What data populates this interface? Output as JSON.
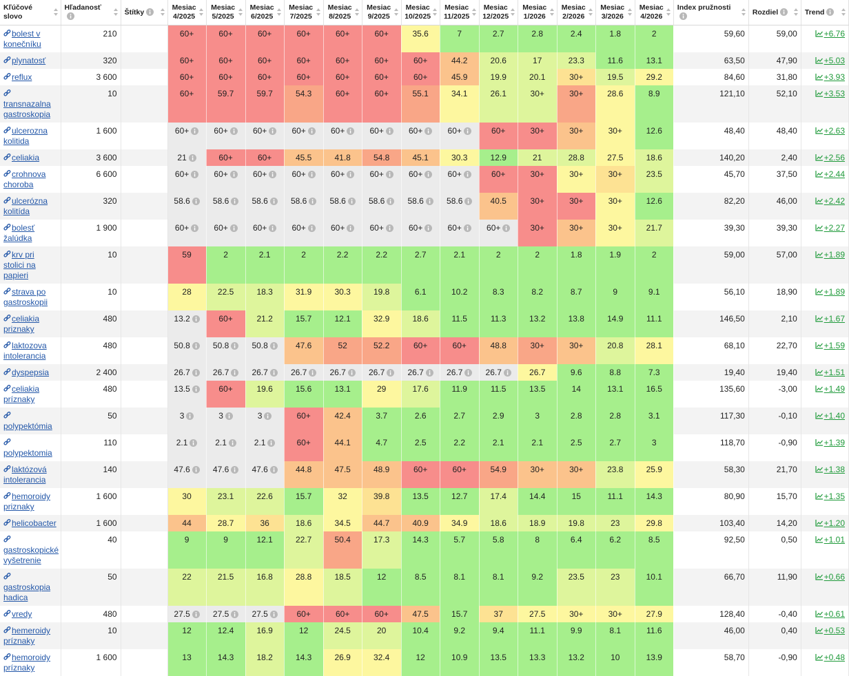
{
  "table": {
    "headers": [
      "Kľúčové slovo",
      "Hľadanosť",
      "Štítky",
      "Mesiac 4/2025",
      "Mesiac 5/2025",
      "Mesiac 6/2025",
      "Mesiac 7/2025",
      "Mesiac 8/2025",
      "Mesiac 9/2025",
      "Mesiac 10/2025",
      "Mesiac 11/2025",
      "Mesiac 12/2025",
      "Mesiac 1/2026",
      "Mesiac 2/2026",
      "Mesiac 3/2026",
      "Mesiac 4/2026",
      "Index pružnosti",
      "Rozdiel",
      "Trend"
    ],
    "unavailable_color": "#ebebeb",
    "rows": [
      {
        "keyword": "bolest v konečníku",
        "volume": "210",
        "months": [
          "60+",
          "60+",
          "60+",
          "60+",
          "60+",
          "60+",
          "35.6",
          "7",
          "2.7",
          "2.8",
          "2.4",
          "1.8",
          "2"
        ],
        "colors": [
          "#f78d8b",
          "#f78d8b",
          "#f78d8b",
          "#f78d8b",
          "#f78d8b",
          "#f78d8b",
          "#fdf79f",
          "#a6ef8c",
          "#a6ef8c",
          "#a6ef8c",
          "#a6ef8c",
          "#a6ef8c",
          "#a6ef8c"
        ],
        "index": "59,60",
        "diff": "59,00",
        "trend": "+6.76"
      },
      {
        "keyword": "plynatosť",
        "volume": "320",
        "months": [
          "60+",
          "60+",
          "60+",
          "60+",
          "60+",
          "60+",
          "60+",
          "44.2",
          "20.6",
          "17",
          "23.3",
          "11.6",
          "13.1"
        ],
        "colors": [
          "#f78d8b",
          "#f78d8b",
          "#f78d8b",
          "#f78d8b",
          "#f78d8b",
          "#f78d8b",
          "#f78d8b",
          "#fbc38c",
          "#def59c",
          "#def59c",
          "#def59c",
          "#a6ef8c",
          "#a6ef8c"
        ],
        "index": "63,50",
        "diff": "47,90",
        "trend": "+5.03"
      },
      {
        "keyword": "reflux",
        "volume": "3 600",
        "months": [
          "60+",
          "60+",
          "60+",
          "60+",
          "60+",
          "60+",
          "60+",
          "45.9",
          "19.9",
          "20.1",
          "30+",
          "19.5",
          "29.2"
        ],
        "colors": [
          "#f78d8b",
          "#f78d8b",
          "#f78d8b",
          "#f78d8b",
          "#f78d8b",
          "#f78d8b",
          "#f78d8b",
          "#fbc38c",
          "#def59c",
          "#def59c",
          "#fde293",
          "#def59c",
          "#fdf79f"
        ],
        "index": "84,60",
        "diff": "31,80",
        "trend": "+3.93"
      },
      {
        "keyword": "transnazalna gastroskopia",
        "volume": "10",
        "months": [
          "60+",
          "59.7",
          "59.7",
          "54.3",
          "60+",
          "60+",
          "55.1",
          "34.1",
          "26.1",
          "30+",
          "30+",
          "28.6",
          "8.9"
        ],
        "colors": [
          "#f78d8b",
          "#f78d8b",
          "#f78d8b",
          "#f9a687",
          "#f78d8b",
          "#f78d8b",
          "#f9a687",
          "#fdf79f",
          "#def59c",
          "#def59c",
          "#f9a687",
          "#fdf79f",
          "#a6ef8c"
        ],
        "index": "121,10",
        "diff": "52,10",
        "trend": "+3.53"
      },
      {
        "keyword": "ulcerozna kolitida",
        "volume": "1 600",
        "months": [
          "60+",
          "60+",
          "60+",
          "60+",
          "60+",
          "60+",
          "60+",
          "60+",
          "60+",
          "30+",
          "30+",
          "30+",
          "12.6"
        ],
        "colors": [
          "#ebebeb",
          "#ebebeb",
          "#ebebeb",
          "#ebebeb",
          "#ebebeb",
          "#ebebeb",
          "#ebebeb",
          "#ebebeb",
          "#f78d8b",
          "#f78d8b",
          "#fbc38c",
          "#fdf79f",
          "#a6ef8c"
        ],
        "index": "48,40",
        "diff": "48,40",
        "trend": "+2.63"
      },
      {
        "keyword": "celiakia",
        "volume": "3 600",
        "months": [
          "21",
          "60+",
          "60+",
          "45.5",
          "41.8",
          "54.8",
          "45.1",
          "30.3",
          "12.9",
          "21",
          "28.8",
          "27.5",
          "18.6"
        ],
        "colors": [
          "#ebebeb",
          "#f78d8b",
          "#f78d8b",
          "#fbc38c",
          "#fbc38c",
          "#f9a687",
          "#fbc38c",
          "#fdf79f",
          "#a6ef8c",
          "#def59c",
          "#def59c",
          "#fdf79f",
          "#def59c"
        ],
        "index": "140,20",
        "diff": "2,40",
        "trend": "+2.56"
      },
      {
        "keyword": "crohnova choroba",
        "volume": "6 600",
        "months": [
          "60+",
          "60+",
          "60+",
          "60+",
          "60+",
          "60+",
          "60+",
          "60+",
          "60+",
          "30+",
          "30+",
          "30+",
          "23.5"
        ],
        "colors": [
          "#ebebeb",
          "#ebebeb",
          "#ebebeb",
          "#ebebeb",
          "#ebebeb",
          "#ebebeb",
          "#ebebeb",
          "#ebebeb",
          "#f78d8b",
          "#f78d8b",
          "#fdf79f",
          "#fde293",
          "#def59c"
        ],
        "index": "45,70",
        "diff": "37,50",
        "trend": "+2.44"
      },
      {
        "keyword": "ulcerózna kolitída",
        "volume": "320",
        "months": [
          "58.6",
          "58.6",
          "58.6",
          "58.6",
          "58.6",
          "58.6",
          "58.6",
          "58.6",
          "40.5",
          "30+",
          "30+",
          "30+",
          "12.6"
        ],
        "colors": [
          "#ebebeb",
          "#ebebeb",
          "#ebebeb",
          "#ebebeb",
          "#ebebeb",
          "#ebebeb",
          "#ebebeb",
          "#ebebeb",
          "#fbc38c",
          "#f78d8b",
          "#f78d8b",
          "#fdf79f",
          "#a6ef8c"
        ],
        "index": "82,20",
        "diff": "46,00",
        "trend": "+2.42"
      },
      {
        "keyword": "bolesť žalúdka",
        "volume": "1 900",
        "months": [
          "60+",
          "60+",
          "60+",
          "60+",
          "60+",
          "60+",
          "60+",
          "60+",
          "60+",
          "30+",
          "30+",
          "30+",
          "21.7"
        ],
        "colors": [
          "#ebebeb",
          "#ebebeb",
          "#ebebeb",
          "#ebebeb",
          "#ebebeb",
          "#ebebeb",
          "#ebebeb",
          "#ebebeb",
          "#ebebeb",
          "#f78d8b",
          "#fbc38c",
          "#fdf79f",
          "#def59c"
        ],
        "index": "39,30",
        "diff": "39,30",
        "trend": "+2.27"
      },
      {
        "keyword": "krv pri stolici na papieri",
        "volume": "10",
        "months": [
          "59",
          "2",
          "2.1",
          "2",
          "2.2",
          "2.2",
          "2.7",
          "2.1",
          "2",
          "2",
          "1.8",
          "1.9",
          "2"
        ],
        "colors": [
          "#f78d8b",
          "#a6ef8c",
          "#a6ef8c",
          "#a6ef8c",
          "#a6ef8c",
          "#a6ef8c",
          "#a6ef8c",
          "#a6ef8c",
          "#a6ef8c",
          "#a6ef8c",
          "#a6ef8c",
          "#a6ef8c",
          "#a6ef8c"
        ],
        "index": "59,00",
        "diff": "57,00",
        "trend": "+1.89"
      },
      {
        "keyword": "strava po gastroskopii",
        "volume": "10",
        "months": [
          "28",
          "22.5",
          "18.3",
          "31.9",
          "30.3",
          "19.8",
          "6.1",
          "10.2",
          "8.3",
          "8.2",
          "8.7",
          "9",
          "9.1"
        ],
        "colors": [
          "#fdf79f",
          "#def59c",
          "#def59c",
          "#fdf79f",
          "#fdf79f",
          "#def59c",
          "#a6ef8c",
          "#a6ef8c",
          "#a6ef8c",
          "#a6ef8c",
          "#a6ef8c",
          "#a6ef8c",
          "#a6ef8c"
        ],
        "index": "56,10",
        "diff": "18,90",
        "trend": "+1.89"
      },
      {
        "keyword": "celiakia priznaky",
        "volume": "480",
        "months": [
          "13.2",
          "60+",
          "21.2",
          "15.7",
          "12.1",
          "32.9",
          "18.6",
          "11.5",
          "11.3",
          "13.2",
          "13.8",
          "14.9",
          "11.1"
        ],
        "colors": [
          "#ebebeb",
          "#f78d8b",
          "#def59c",
          "#a6ef8c",
          "#a6ef8c",
          "#fdf79f",
          "#def59c",
          "#a6ef8c",
          "#a6ef8c",
          "#a6ef8c",
          "#a6ef8c",
          "#a6ef8c",
          "#a6ef8c"
        ],
        "index": "146,50",
        "diff": "2,10",
        "trend": "+1.67"
      },
      {
        "keyword": "laktozova intolerancia",
        "volume": "480",
        "months": [
          "50.8",
          "50.8",
          "50.8",
          "47.6",
          "52",
          "52.2",
          "60+",
          "60+",
          "48.8",
          "30+",
          "30+",
          "20.8",
          "28.1"
        ],
        "colors": [
          "#ebebeb",
          "#ebebeb",
          "#ebebeb",
          "#fbc38c",
          "#f9a687",
          "#f9a687",
          "#f78d8b",
          "#f78d8b",
          "#fbc38c",
          "#f9a687",
          "#fbc38c",
          "#def59c",
          "#fdf79f"
        ],
        "index": "68,10",
        "diff": "22,70",
        "trend": "+1.59"
      },
      {
        "keyword": "dyspepsia",
        "volume": "2 400",
        "months": [
          "26.7",
          "26.7",
          "26.7",
          "26.7",
          "26.7",
          "26.7",
          "26.7",
          "26.7",
          "26.7",
          "26.7",
          "9.6",
          "8.8",
          "7.3"
        ],
        "colors": [
          "#ebebeb",
          "#ebebeb",
          "#ebebeb",
          "#ebebeb",
          "#ebebeb",
          "#ebebeb",
          "#ebebeb",
          "#ebebeb",
          "#ebebeb",
          "#fdf79f",
          "#a6ef8c",
          "#a6ef8c",
          "#a6ef8c"
        ],
        "index": "19,40",
        "diff": "19,40",
        "trend": "+1.51"
      },
      {
        "keyword": "celiakia príznaky",
        "volume": "480",
        "months": [
          "13.5",
          "60+",
          "19.6",
          "15.6",
          "13.1",
          "29",
          "17.6",
          "11.9",
          "11.5",
          "13.5",
          "14",
          "13.1",
          "16.5"
        ],
        "colors": [
          "#ebebeb",
          "#f78d8b",
          "#def59c",
          "#a6ef8c",
          "#a6ef8c",
          "#fdf79f",
          "#def59c",
          "#a6ef8c",
          "#a6ef8c",
          "#a6ef8c",
          "#a6ef8c",
          "#a6ef8c",
          "#a6ef8c"
        ],
        "index": "135,60",
        "diff": "-3,00",
        "trend": "+1.49"
      },
      {
        "keyword": "polypektómia",
        "volume": "50",
        "months": [
          "3",
          "3",
          "3",
          "60+",
          "42.4",
          "3.7",
          "2.6",
          "2.7",
          "2.9",
          "3",
          "2.8",
          "2.8",
          "3.1"
        ],
        "colors": [
          "#ebebeb",
          "#ebebeb",
          "#ebebeb",
          "#f78d8b",
          "#fbc38c",
          "#a6ef8c",
          "#a6ef8c",
          "#a6ef8c",
          "#a6ef8c",
          "#a6ef8c",
          "#a6ef8c",
          "#a6ef8c",
          "#a6ef8c"
        ],
        "index": "117,30",
        "diff": "-0,10",
        "trend": "+1.40"
      },
      {
        "keyword": "polypektomia",
        "volume": "110",
        "months": [
          "2.1",
          "2.1",
          "2.1",
          "60+",
          "44.1",
          "4.7",
          "2.5",
          "2.2",
          "2.1",
          "2.1",
          "2.5",
          "2.7",
          "3"
        ],
        "colors": [
          "#ebebeb",
          "#ebebeb",
          "#ebebeb",
          "#f78d8b",
          "#fbc38c",
          "#a6ef8c",
          "#a6ef8c",
          "#a6ef8c",
          "#a6ef8c",
          "#a6ef8c",
          "#a6ef8c",
          "#a6ef8c",
          "#a6ef8c"
        ],
        "index": "118,70",
        "diff": "-0,90",
        "trend": "+1.39"
      },
      {
        "keyword": "laktózová intolerancia",
        "volume": "140",
        "months": [
          "47.6",
          "47.6",
          "47.6",
          "44.8",
          "47.5",
          "48.9",
          "60+",
          "60+",
          "54.9",
          "30+",
          "30+",
          "23.8",
          "25.9"
        ],
        "colors": [
          "#ebebeb",
          "#ebebeb",
          "#ebebeb",
          "#fbc38c",
          "#fbc38c",
          "#fbc38c",
          "#f78d8b",
          "#f78d8b",
          "#f9a687",
          "#fbc38c",
          "#fbc38c",
          "#def59c",
          "#fdf79f"
        ],
        "index": "58,30",
        "diff": "21,70",
        "trend": "+1.38"
      },
      {
        "keyword": "hemoroidy priznaky",
        "volume": "1 600",
        "months": [
          "30",
          "23.1",
          "22.6",
          "15.7",
          "32",
          "39.8",
          "13.5",
          "12.7",
          "17.4",
          "14.4",
          "15",
          "11.1",
          "14.3"
        ],
        "colors": [
          "#fdf79f",
          "#def59c",
          "#def59c",
          "#a6ef8c",
          "#fdf79f",
          "#fde293",
          "#a6ef8c",
          "#a6ef8c",
          "#def59c",
          "#a6ef8c",
          "#a6ef8c",
          "#a6ef8c",
          "#a6ef8c"
        ],
        "index": "80,90",
        "diff": "15,70",
        "trend": "+1.35"
      },
      {
        "keyword": "helicobacter",
        "volume": "1 600",
        "months": [
          "44",
          "28.7",
          "36",
          "18.6",
          "34.5",
          "44.7",
          "40.9",
          "34.9",
          "18.6",
          "18.9",
          "19.8",
          "23",
          "29.8"
        ],
        "colors": [
          "#fbc38c",
          "#fdf79f",
          "#fde293",
          "#def59c",
          "#fdf79f",
          "#fbc38c",
          "#fbc38c",
          "#fdf79f",
          "#def59c",
          "#def59c",
          "#def59c",
          "#def59c",
          "#fdf79f"
        ],
        "index": "103,40",
        "diff": "14,20",
        "trend": "+1.20"
      },
      {
        "keyword": "gastroskopické vyšetrenie",
        "volume": "40",
        "months": [
          "9",
          "9",
          "12.1",
          "22.7",
          "50.4",
          "17.3",
          "14.3",
          "5.7",
          "5.8",
          "8",
          "6.4",
          "6.2",
          "8.5"
        ],
        "colors": [
          "#a6ef8c",
          "#a6ef8c",
          "#a6ef8c",
          "#def59c",
          "#f9a687",
          "#def59c",
          "#a6ef8c",
          "#a6ef8c",
          "#a6ef8c",
          "#a6ef8c",
          "#a6ef8c",
          "#a6ef8c",
          "#a6ef8c"
        ],
        "index": "92,50",
        "diff": "0,50",
        "trend": "+1.01"
      },
      {
        "keyword": "gastroskopia hadica",
        "volume": "50",
        "months": [
          "22",
          "21.5",
          "16.8",
          "28.8",
          "18.5",
          "12",
          "8.5",
          "8.1",
          "8.1",
          "9.2",
          "23.5",
          "23",
          "10.1"
        ],
        "colors": [
          "#def59c",
          "#def59c",
          "#def59c",
          "#fdf79f",
          "#def59c",
          "#a6ef8c",
          "#a6ef8c",
          "#a6ef8c",
          "#a6ef8c",
          "#a6ef8c",
          "#def59c",
          "#def59c",
          "#a6ef8c"
        ],
        "index": "66,70",
        "diff": "11,90",
        "trend": "+0.66"
      },
      {
        "keyword": "vredy",
        "volume": "480",
        "months": [
          "27.5",
          "27.5",
          "27.5",
          "60+",
          "60+",
          "60+",
          "47.5",
          "15.7",
          "37",
          "27.5",
          "30+",
          "30+",
          "27.9"
        ],
        "colors": [
          "#ebebeb",
          "#ebebeb",
          "#ebebeb",
          "#f78d8b",
          "#f78d8b",
          "#f78d8b",
          "#fbc38c",
          "#a6ef8c",
          "#fde293",
          "#fdf79f",
          "#fdf79f",
          "#fdf79f",
          "#fdf79f"
        ],
        "index": "128,40",
        "diff": "-0,40",
        "trend": "+0.61"
      },
      {
        "keyword": "hemeroidy príznaky",
        "volume": "10",
        "months": [
          "12",
          "12.4",
          "16.9",
          "12",
          "24.5",
          "20",
          "10.4",
          "9.2",
          "9.4",
          "11.1",
          "9.9",
          "8.1",
          "11.6"
        ],
        "colors": [
          "#a6ef8c",
          "#a6ef8c",
          "#def59c",
          "#a6ef8c",
          "#def59c",
          "#def59c",
          "#a6ef8c",
          "#a6ef8c",
          "#a6ef8c",
          "#a6ef8c",
          "#a6ef8c",
          "#a6ef8c",
          "#a6ef8c"
        ],
        "index": "46,00",
        "diff": "0,40",
        "trend": "+0.53"
      },
      {
        "keyword": "hemoroidy príznaky",
        "volume": "1 600",
        "months": [
          "13",
          "14.3",
          "18.2",
          "14.3",
          "26.9",
          "32.4",
          "12",
          "10.9",
          "13.5",
          "13.3",
          "13.2",
          "10",
          "13.9"
        ],
        "colors": [
          "#a6ef8c",
          "#a6ef8c",
          "#def59c",
          "#a6ef8c",
          "#fdf79f",
          "#fdf79f",
          "#a6ef8c",
          "#a6ef8c",
          "#a6ef8c",
          "#a6ef8c",
          "#a6ef8c",
          "#a6ef8c",
          "#a6ef8c"
        ],
        "index": "58,70",
        "diff": "-0,90",
        "trend": "+0.48"
      }
    ]
  }
}
